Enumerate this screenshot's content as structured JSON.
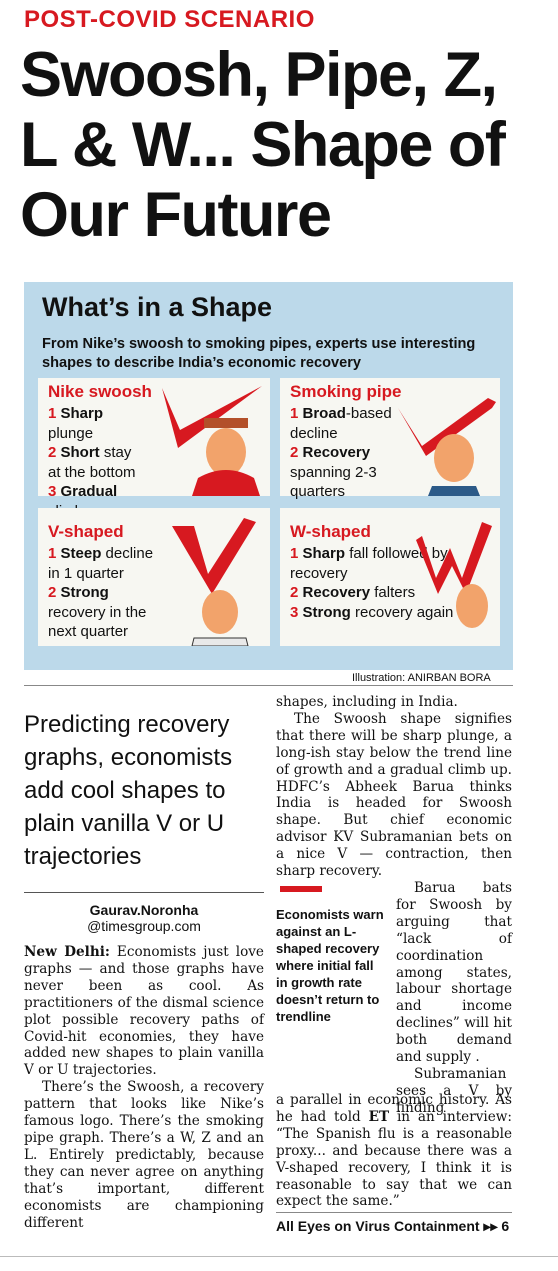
{
  "kicker": "POST-COVID SCENARIO",
  "headline": "Swoosh, Pipe, Z, L & W... Shape of Our Future",
  "graphic": {
    "title": "What’s in a Shape",
    "subtitle": "From Nike’s swoosh to smoking pipes, experts use interesting shapes to describe India’s economic recovery",
    "cards": [
      {
        "title": "Nike swoosh",
        "lines": [
          {
            "num": "1",
            "bold": "Sharp",
            "text": " plunge"
          },
          {
            "num": "2",
            "bold": "Short",
            "text": " stay at the bottom"
          },
          {
            "num": "3",
            "bold": "Gradual",
            "text": " climb"
          }
        ]
      },
      {
        "title": "Smoking pipe",
        "lines": [
          {
            "num": "1",
            "bold": "Broad",
            "text": "-based decline"
          },
          {
            "num": "2",
            "bold": "Recovery",
            "text": " spanning 2-3 quarters"
          }
        ]
      },
      {
        "title": "V-shaped",
        "lines": [
          {
            "num": "1",
            "bold": "Steep",
            "text": " decline in 1 quarter"
          },
          {
            "num": "2",
            "bold": "Strong",
            "text": " recovery in the next quarter"
          }
        ]
      },
      {
        "title": "W-shaped",
        "lines": [
          {
            "num": "1",
            "bold": "Sharp",
            "text": " fall followed by recovery"
          },
          {
            "num": "2",
            "bold": "Recovery",
            "text": " falters"
          },
          {
            "num": "3",
            "bold": "Strong",
            "text": " recovery again"
          }
        ]
      }
    ],
    "credit": "Illustration: ANIRBAN BORA"
  },
  "pull_quote": "Predicting recovery graphs, economists add cool shapes to plain vanilla V or U trajectories",
  "byline": {
    "name": "Gaurav.Noronha",
    "email": "@timesgroup.com"
  },
  "body": {
    "col1_dateline": "New Delhi:",
    "col1_p1": " Economists just love graphs — and those graphs have never been as cool. As practitioners of the dismal science plot possible recovery paths of Covid-hit economies, they have added new shapes to plain vanilla V or U trajectories.",
    "col1_p2": "There’s the Swoosh, a recovery pattern that looks like Nike’s famous logo. There’s the smoking pipe graph. There’s a W, Z and an L. Entirely predictably, because they can never agree on anything that’s important, different economists are championing different",
    "col2_p1": "shapes, including in India.",
    "col2_p2": "The Swoosh shape signifies that there will be sharp plunge, a long-ish stay below the trend line of growth and a gradual climb up. HDFC’s Abheek Barua thinks India is headed for Swoosh shape. But chief economic advisor KV Subramanian bets on a nice V — contraction, then sharp recovery.",
    "col2_narrow": "Barua bats for Swoosh by arguing that “lack of coordination among states, labour shortage and income declines” will hit both demand and supply .",
    "col2_narrow2": "Subramanian sees a V by finding",
    "col2_p3": "a parallel in economic history. As he had told",
    "col2_et": "ET",
    "col2_p3b": " in an interview: “The Spanish flu is a reasonable proxy... and because there was a V-shaped recovery, I think it is reasonable to say that we can expect the same.”"
  },
  "sidebar_quote": "Economists warn against an L-shaped recovery where initial fall in growth rate doesn’t return to trendline",
  "footer_ref": "All Eyes on Virus Containment",
  "footer_page": "6",
  "colors": {
    "accent": "#d71920",
    "panel": "#bcd9ea"
  }
}
